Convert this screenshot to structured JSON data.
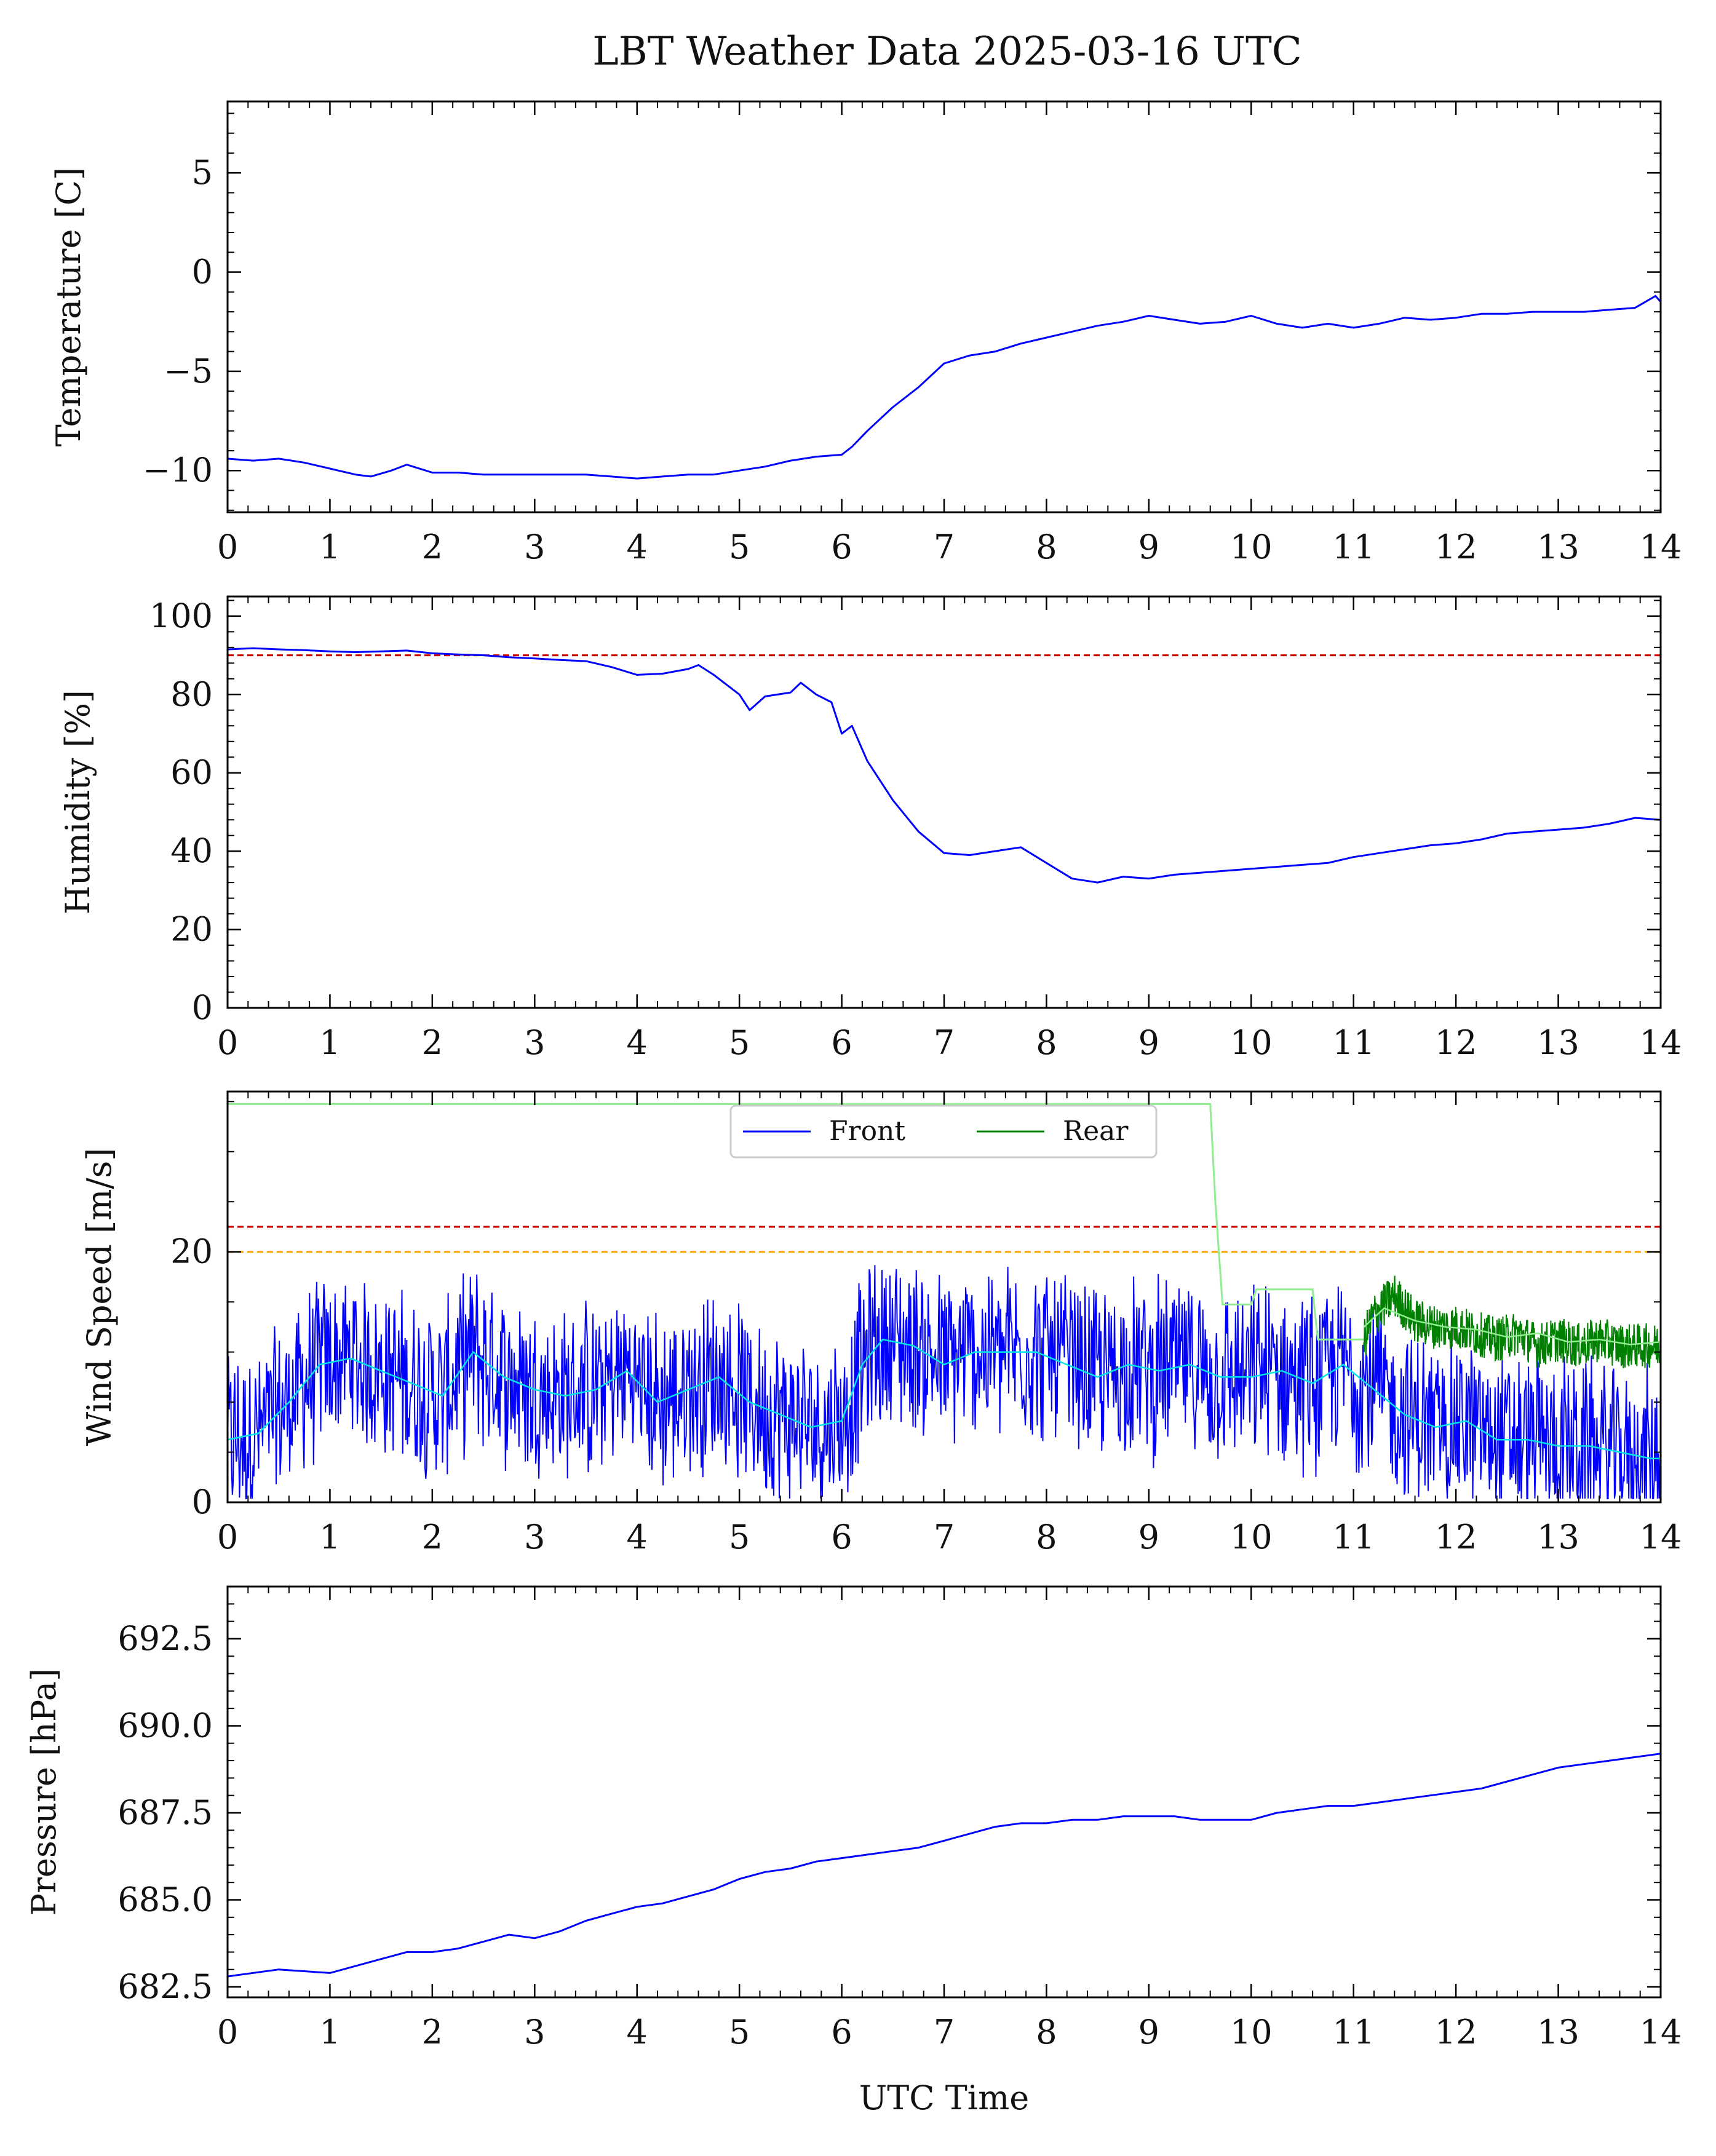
{
  "title": "LBT Weather Data 2025-03-16 UTC",
  "xlabel": "UTC Time",
  "colors": {
    "front": "#0000ff",
    "rear": "#008000",
    "front_avg": "#00e5e5",
    "rear_avg": "#90ee90",
    "limit_red": "#cc0000",
    "limit_orange": "#ffa500"
  },
  "chart_data": [
    {
      "type": "line",
      "ylabel": "Temperature [C]",
      "xlim": [
        0,
        14
      ],
      "ylim": [
        -12.1,
        8.6
      ],
      "xticks": [
        0,
        1,
        2,
        3,
        4,
        5,
        6,
        7,
        8,
        9,
        10,
        11,
        12,
        13,
        14
      ],
      "yticks": [
        5,
        0,
        -5,
        -10
      ],
      "ytick_labels": [
        "5",
        "0",
        "−5",
        "−10"
      ],
      "series": [
        {
          "key": "temperature",
          "x": [
            0,
            0.25,
            0.5,
            0.75,
            1.0,
            1.25,
            1.4,
            1.6,
            1.75,
            2.0,
            2.25,
            2.5,
            2.75,
            3.0,
            3.25,
            3.5,
            3.75,
            4.0,
            4.25,
            4.5,
            4.75,
            5.0,
            5.25,
            5.5,
            5.75,
            6.0,
            6.1,
            6.25,
            6.5,
            6.75,
            7.0,
            7.25,
            7.5,
            7.75,
            8.0,
            8.25,
            8.5,
            8.75,
            9.0,
            9.25,
            9.5,
            9.75,
            10.0,
            10.25,
            10.5,
            10.75,
            11.0,
            11.25,
            11.5,
            11.75,
            12.0,
            12.25,
            12.5,
            12.75,
            13.0,
            13.25,
            13.5,
            13.75,
            13.95,
            14.0
          ],
          "y": [
            -9.4,
            -9.5,
            -9.4,
            -9.6,
            -9.9,
            -10.2,
            -10.3,
            -10.0,
            -9.7,
            -10.1,
            -10.1,
            -10.2,
            -10.2,
            -10.2,
            -10.2,
            -10.2,
            -10.3,
            -10.4,
            -10.3,
            -10.2,
            -10.2,
            -10.0,
            -9.8,
            -9.5,
            -9.3,
            -9.2,
            -8.8,
            -8.0,
            -6.8,
            -5.8,
            -4.6,
            -4.2,
            -4.0,
            -3.6,
            -3.3,
            -3.0,
            -2.7,
            -2.5,
            -2.2,
            -2.4,
            -2.6,
            -2.5,
            -2.2,
            -2.6,
            -2.8,
            -2.6,
            -2.8,
            -2.6,
            -2.3,
            -2.4,
            -2.3,
            -2.1,
            -2.1,
            -2.0,
            -2.0,
            -2.0,
            -1.9,
            -1.8,
            -1.2,
            -1.5
          ]
        }
      ]
    },
    {
      "type": "line",
      "ylabel": "Humidity [%]",
      "xlim": [
        0,
        14
      ],
      "ylim": [
        0,
        105
      ],
      "xticks": [
        0,
        1,
        2,
        3,
        4,
        5,
        6,
        7,
        8,
        9,
        10,
        11,
        12,
        13,
        14
      ],
      "yticks": [
        0,
        20,
        40,
        60,
        80,
        100
      ],
      "ytick_labels": [
        "0",
        "20",
        "40",
        "60",
        "80",
        "100"
      ],
      "limit_lines": [
        {
          "y": 90,
          "color": "limit_red"
        }
      ],
      "series": [
        {
          "key": "humidity",
          "x": [
            0,
            0.25,
            0.5,
            0.75,
            1.0,
            1.25,
            1.5,
            1.75,
            2.0,
            2.25,
            2.5,
            2.75,
            3.0,
            3.25,
            3.5,
            3.75,
            4.0,
            4.25,
            4.5,
            4.6,
            4.75,
            5.0,
            5.1,
            5.25,
            5.5,
            5.6,
            5.75,
            5.9,
            6.0,
            6.1,
            6.25,
            6.5,
            6.75,
            7.0,
            7.25,
            7.5,
            7.75,
            8.0,
            8.25,
            8.5,
            8.75,
            9.0,
            9.25,
            9.5,
            9.75,
            10.0,
            10.25,
            10.5,
            10.75,
            11.0,
            11.25,
            11.5,
            11.75,
            12.0,
            12.25,
            12.5,
            12.75,
            13.0,
            13.25,
            13.5,
            13.75,
            14.0
          ],
          "y": [
            91.5,
            91.8,
            91.5,
            91.3,
            91.0,
            90.8,
            91.0,
            91.2,
            90.5,
            90.2,
            90.0,
            89.5,
            89.2,
            88.8,
            88.5,
            87.0,
            85.0,
            85.3,
            86.5,
            87.5,
            85.0,
            80.0,
            76.0,
            79.5,
            80.5,
            83.0,
            80.0,
            78.0,
            70.0,
            72.0,
            63.0,
            53.0,
            45.0,
            39.5,
            39.0,
            40.0,
            41.0,
            37.0,
            33.0,
            32.0,
            33.5,
            33.0,
            34.0,
            34.5,
            35.0,
            35.5,
            36.0,
            36.5,
            37.0,
            38.5,
            39.5,
            40.5,
            41.5,
            42.0,
            43.0,
            44.5,
            45.0,
            45.5,
            46.0,
            47.0,
            48.5,
            48.0
          ]
        }
      ]
    },
    {
      "type": "line",
      "ylabel": "Wind Speed [m/s]",
      "xlim": [
        0,
        14
      ],
      "ylim": [
        0,
        32.8
      ],
      "xticks": [
        0,
        1,
        2,
        3,
        4,
        5,
        6,
        7,
        8,
        9,
        10,
        11,
        12,
        13,
        14
      ],
      "yticks": [
        0,
        20
      ],
      "ytick_labels": [
        "0",
        "20"
      ],
      "legend": {
        "placement": "top-center",
        "entries": [
          "Front",
          "Rear"
        ]
      },
      "limit_lines": [
        {
          "y": 22,
          "color": "limit_red"
        },
        {
          "y": 20,
          "color": "limit_orange"
        }
      ],
      "series": [
        {
          "key": "front_avg",
          "x": [
            0,
            0.3,
            0.6,
            0.9,
            1.2,
            1.5,
            1.8,
            2.1,
            2.4,
            2.7,
            3.0,
            3.3,
            3.6,
            3.9,
            4.2,
            4.5,
            4.8,
            5.1,
            5.4,
            5.7,
            6.0,
            6.2,
            6.4,
            6.7,
            7.0,
            7.3,
            7.6,
            7.9,
            8.2,
            8.5,
            8.8,
            9.1,
            9.4,
            9.7,
            10.0,
            10.3,
            10.6,
            10.9,
            11.2,
            11.5,
            11.8,
            12.1,
            12.4,
            12.7,
            13.0,
            13.3,
            13.6,
            13.9,
            14.0
          ],
          "y": [
            5.0,
            5.5,
            8.0,
            11.0,
            11.5,
            10.5,
            9.5,
            8.5,
            12.0,
            10.0,
            9.0,
            8.5,
            9.0,
            10.5,
            8.0,
            9.0,
            10.0,
            8.0,
            7.0,
            6.0,
            6.5,
            11.0,
            13.0,
            12.5,
            11.0,
            12.0,
            12.0,
            12.0,
            11.0,
            10.0,
            11.0,
            10.5,
            11.0,
            10.0,
            10.0,
            10.5,
            9.5,
            11.0,
            9.0,
            7.0,
            6.0,
            6.5,
            5.0,
            5.0,
            4.5,
            4.5,
            4.0,
            3.5,
            3.5
          ]
        },
        {
          "key": "rear",
          "x": [
            0,
            9.6,
            9.65,
            9.72,
            10.0,
            10.05,
            10.6,
            10.65,
            11.1,
            11.2,
            11.4,
            11.6,
            11.8,
            12.0,
            12.2,
            12.4,
            12.6,
            12.8,
            13.0,
            13.2,
            13.4,
            13.6,
            13.8,
            14.0
          ],
          "y": [
            31.8,
            31.8,
            24.0,
            15.8,
            15.8,
            17.0,
            17.0,
            13.0,
            13.0,
            15.0,
            16.5,
            14.5,
            14.0,
            14.0,
            13.5,
            13.0,
            13.5,
            12.5,
            13.0,
            12.5,
            13.0,
            12.5,
            12.5,
            12.5
          ]
        },
        {
          "key": "rear_avg",
          "x": [
            11.1,
            11.3,
            11.6,
            11.9,
            12.2,
            12.5,
            12.8,
            13.1,
            13.4,
            13.7,
            14.0
          ],
          "y": [
            14.0,
            15.5,
            14.5,
            14.0,
            13.8,
            13.2,
            13.5,
            12.8,
            13.0,
            12.6,
            12.8
          ]
        }
      ]
    },
    {
      "type": "line",
      "ylabel": "Pressure [hPa]",
      "xlim": [
        0,
        14
      ],
      "ylim": [
        682.2,
        694.0
      ],
      "xticks": [
        0,
        1,
        2,
        3,
        4,
        5,
        6,
        7,
        8,
        9,
        10,
        11,
        12,
        13,
        14
      ],
      "yticks": [
        682.5,
        685.0,
        687.5,
        690.0,
        692.5
      ],
      "ytick_labels": [
        "682.5",
        "685.0",
        "687.5",
        "690.0",
        "692.5"
      ],
      "series": [
        {
          "key": "pressure",
          "x": [
            0,
            0.5,
            1.0,
            1.25,
            1.5,
            1.75,
            2.0,
            2.25,
            2.5,
            2.75,
            3.0,
            3.25,
            3.5,
            3.75,
            4.0,
            4.25,
            4.5,
            4.75,
            5.0,
            5.25,
            5.5,
            5.75,
            6.0,
            6.25,
            6.5,
            6.75,
            7.0,
            7.25,
            7.5,
            7.75,
            8.0,
            8.25,
            8.5,
            8.75,
            9.0,
            9.25,
            9.5,
            9.75,
            10.0,
            10.25,
            10.5,
            10.75,
            11.0,
            11.25,
            11.5,
            11.75,
            12.0,
            12.25,
            12.5,
            12.75,
            13.0,
            13.25,
            13.5,
            13.75,
            14.0
          ],
          "y": [
            682.8,
            683.0,
            682.9,
            683.1,
            683.3,
            683.5,
            683.5,
            683.6,
            683.8,
            684.0,
            683.9,
            684.1,
            684.4,
            684.6,
            684.8,
            684.9,
            685.1,
            685.3,
            685.6,
            685.8,
            685.9,
            686.1,
            686.2,
            686.3,
            686.4,
            686.5,
            686.7,
            686.9,
            687.1,
            687.2,
            687.2,
            687.3,
            687.3,
            687.4,
            687.4,
            687.4,
            687.3,
            687.3,
            687.3,
            687.5,
            687.6,
            687.7,
            687.7,
            687.8,
            687.9,
            688.0,
            688.1,
            688.2,
            688.4,
            688.6,
            688.8,
            688.9,
            689.0,
            689.1,
            689.2
          ]
        }
      ]
    }
  ]
}
